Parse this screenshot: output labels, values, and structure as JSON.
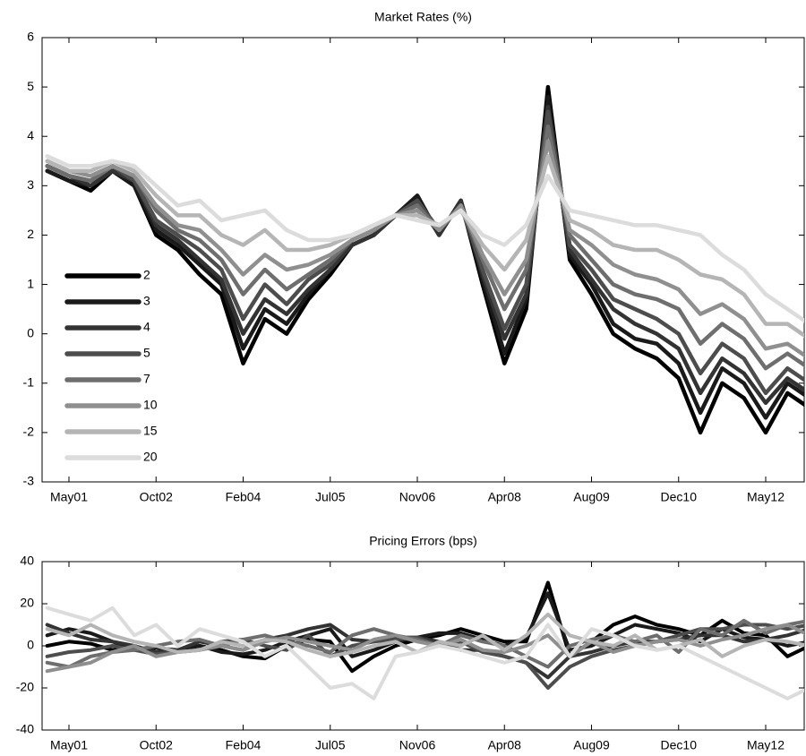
{
  "chart_data": [
    {
      "type": "line",
      "title": "Market Rates (%)",
      "categories": [
        null,
        "May01",
        null,
        null,
        null,
        "Oct02",
        null,
        null,
        null,
        "Feb04",
        null,
        null,
        null,
        "Jul05",
        null,
        null,
        null,
        "Nov06",
        null,
        null,
        null,
        "Apr08",
        null,
        null,
        null,
        "Aug09",
        null,
        null,
        null,
        "Dec10",
        null,
        null,
        null,
        "May12",
        null,
        null
      ],
      "ylim": [
        -3,
        6
      ],
      "yticks": [
        -3,
        -2,
        -1,
        0,
        1,
        2,
        3,
        4,
        5,
        6
      ],
      "legend": "lower left",
      "series": [
        {
          "name": "2",
          "color": "#000000",
          "values": [
            3.3,
            3.1,
            2.9,
            3.3,
            3.0,
            2.0,
            1.7,
            1.2,
            0.8,
            -0.6,
            0.3,
            0.0,
            0.7,
            1.2,
            1.8,
            2.0,
            2.4,
            2.8,
            2.0,
            2.7,
            1.0,
            -0.6,
            0.5,
            5.0,
            1.5,
            0.8,
            0.0,
            -0.3,
            -0.5,
            -0.9,
            -2.0,
            -1.0,
            -1.3,
            -2.0,
            -1.2,
            -1.5
          ]
        },
        {
          "name": "3",
          "color": "#1a1a1a",
          "values": [
            3.3,
            3.1,
            3.0,
            3.3,
            3.0,
            2.1,
            1.8,
            1.4,
            1.0,
            -0.3,
            0.5,
            0.2,
            0.8,
            1.3,
            1.8,
            2.0,
            2.4,
            2.8,
            2.0,
            2.7,
            1.1,
            -0.4,
            0.7,
            4.8,
            1.6,
            1.0,
            0.2,
            -0.1,
            -0.2,
            -0.6,
            -1.6,
            -0.7,
            -1.0,
            -1.7,
            -1.0,
            -1.3
          ]
        },
        {
          "name": "4",
          "color": "#333333",
          "values": [
            3.4,
            3.2,
            3.0,
            3.3,
            3.1,
            2.2,
            1.9,
            1.5,
            1.1,
            0.0,
            0.7,
            0.4,
            0.9,
            1.3,
            1.8,
            2.0,
            2.4,
            2.7,
            2.0,
            2.7,
            1.2,
            -0.1,
            0.8,
            4.6,
            1.7,
            1.1,
            0.5,
            0.2,
            0.0,
            -0.3,
            -1.2,
            -0.5,
            -0.8,
            -1.4,
            -0.9,
            -1.2
          ]
        },
        {
          "name": "5",
          "color": "#4d4d4d",
          "values": [
            3.4,
            3.2,
            3.1,
            3.4,
            3.1,
            2.3,
            2.0,
            1.7,
            1.3,
            0.3,
            1.0,
            0.6,
            1.1,
            1.4,
            1.9,
            2.1,
            2.4,
            2.7,
            2.1,
            2.6,
            1.3,
            0.1,
            1.0,
            4.5,
            1.8,
            1.3,
            0.7,
            0.5,
            0.3,
            0.0,
            -0.8,
            -0.2,
            -0.5,
            -1.2,
            -0.7,
            -1.0
          ]
        },
        {
          "name": "7",
          "color": "#6e6e6e",
          "values": [
            3.4,
            3.2,
            3.1,
            3.4,
            3.2,
            2.5,
            2.1,
            1.9,
            1.5,
            0.8,
            1.3,
            0.9,
            1.2,
            1.5,
            1.9,
            2.1,
            2.4,
            2.6,
            2.1,
            2.6,
            1.5,
            0.5,
            1.3,
            4.2,
            2.0,
            1.5,
            1.0,
            0.8,
            0.7,
            0.5,
            -0.2,
            0.2,
            -0.1,
            -0.7,
            -0.4,
            -0.7
          ]
        },
        {
          "name": "10",
          "color": "#8f8f8f",
          "values": [
            3.5,
            3.3,
            3.2,
            3.4,
            3.2,
            2.6,
            2.2,
            2.1,
            1.7,
            1.2,
            1.6,
            1.3,
            1.4,
            1.6,
            1.9,
            2.1,
            2.4,
            2.5,
            2.1,
            2.6,
            1.6,
            0.8,
            1.5,
            3.9,
            2.1,
            1.8,
            1.4,
            1.2,
            1.1,
            0.9,
            0.4,
            0.6,
            0.3,
            -0.3,
            -0.2,
            -0.5
          ]
        },
        {
          "name": "15",
          "color": "#b5b5b5",
          "values": [
            3.5,
            3.3,
            3.3,
            3.5,
            3.3,
            2.8,
            2.4,
            2.4,
            2.0,
            1.8,
            2.1,
            1.7,
            1.7,
            1.8,
            2.0,
            2.2,
            2.4,
            2.4,
            2.2,
            2.5,
            1.8,
            1.3,
            1.9,
            3.6,
            2.3,
            2.1,
            1.8,
            1.7,
            1.7,
            1.5,
            1.2,
            1.1,
            0.8,
            0.2,
            0.2,
            -0.1
          ]
        },
        {
          "name": "20",
          "color": "#dcdcdc",
          "values": [
            3.6,
            3.4,
            3.4,
            3.5,
            3.4,
            3.0,
            2.6,
            2.7,
            2.3,
            2.4,
            2.5,
            2.1,
            1.9,
            1.9,
            2.0,
            2.2,
            2.4,
            2.3,
            2.2,
            2.5,
            2.0,
            1.8,
            2.2,
            3.2,
            2.5,
            2.4,
            2.3,
            2.2,
            2.2,
            2.1,
            2.0,
            1.6,
            1.3,
            0.8,
            0.5,
            0.2
          ]
        }
      ]
    },
    {
      "type": "line",
      "title": "Pricing Errors (bps)",
      "categories": [
        null,
        "May01",
        null,
        null,
        null,
        "Oct02",
        null,
        null,
        null,
        "Feb04",
        null,
        null,
        null,
        "Jul05",
        null,
        null,
        null,
        "Nov06",
        null,
        null,
        null,
        "Apr08",
        null,
        null,
        null,
        "Aug09",
        null,
        null,
        null,
        "Dec10",
        null,
        null,
        null,
        "May12",
        null,
        null
      ],
      "ylim": [
        -40,
        40
      ],
      "yticks": [
        -40,
        -20,
        0,
        20,
        40
      ],
      "series": [
        {
          "color": "#000000",
          "values": [
            0,
            2,
            1,
            -2,
            0,
            -3,
            -2,
            0,
            -2,
            -5,
            -6,
            0,
            3,
            2,
            -12,
            -5,
            0,
            3,
            5,
            8,
            5,
            2,
            2,
            30,
            -5,
            2,
            10,
            14,
            10,
            8,
            5,
            12,
            6,
            5,
            -5,
            0
          ]
        },
        {
          "color": "#1a1a1a",
          "values": [
            5,
            8,
            6,
            2,
            -2,
            -1,
            -2,
            0,
            -3,
            -4,
            -2,
            2,
            5,
            8,
            -5,
            -2,
            2,
            4,
            6,
            6,
            3,
            0,
            4,
            25,
            -2,
            0,
            5,
            10,
            8,
            6,
            2,
            8,
            4,
            3,
            0,
            2
          ]
        },
        {
          "color": "#333333",
          "values": [
            10,
            6,
            3,
            2,
            0,
            -3,
            -2,
            2,
            0,
            -2,
            3,
            5,
            8,
            10,
            3,
            2,
            4,
            4,
            2,
            -2,
            -2,
            -5,
            -8,
            -15,
            -5,
            -3,
            0,
            2,
            2,
            3,
            5,
            5,
            2,
            3,
            5,
            8
          ]
        },
        {
          "color": "#4d4d4d",
          "values": [
            -5,
            -3,
            -2,
            0,
            -2,
            -4,
            -3,
            -2,
            2,
            3,
            0,
            -2,
            5,
            -5,
            0,
            2,
            3,
            4,
            0,
            2,
            -3,
            -5,
            -8,
            -20,
            -10,
            -5,
            -2,
            0,
            2,
            5,
            8,
            8,
            10,
            10,
            8,
            10
          ]
        },
        {
          "color": "#6e6e6e",
          "values": [
            -8,
            -10,
            -5,
            -3,
            -2,
            0,
            2,
            3,
            0,
            3,
            5,
            2,
            0,
            -3,
            5,
            8,
            5,
            3,
            0,
            5,
            2,
            0,
            -5,
            -10,
            0,
            3,
            5,
            2,
            5,
            -3,
            8,
            5,
            12,
            6,
            10,
            12
          ]
        },
        {
          "color": "#8f8f8f",
          "values": [
            -12,
            -10,
            -8,
            -3,
            0,
            -5,
            -3,
            -2,
            0,
            -2,
            2,
            4,
            2,
            0,
            -2,
            3,
            5,
            2,
            0,
            3,
            -2,
            -3,
            0,
            5,
            -5,
            2,
            -3,
            0,
            2,
            3,
            0,
            3,
            5,
            8,
            10,
            5
          ]
        },
        {
          "color": "#b5b5b5",
          "values": [
            8,
            5,
            10,
            5,
            2,
            0,
            -3,
            -2,
            2,
            0,
            3,
            2,
            -2,
            -5,
            -3,
            0,
            2,
            -3,
            2,
            0,
            5,
            -2,
            5,
            15,
            5,
            2,
            0,
            5,
            -2,
            0,
            3,
            -5,
            0,
            3,
            2,
            0
          ]
        },
        {
          "color": "#dcdcdc",
          "values": [
            18,
            15,
            12,
            18,
            5,
            10,
            0,
            8,
            5,
            2,
            -5,
            0,
            -10,
            -20,
            -18,
            -25,
            -5,
            -3,
            0,
            -2,
            -5,
            -8,
            -5,
            10,
            -5,
            8,
            5,
            0,
            -2,
            0,
            -5,
            -10,
            -15,
            -20,
            -25,
            -20
          ]
        }
      ]
    }
  ]
}
